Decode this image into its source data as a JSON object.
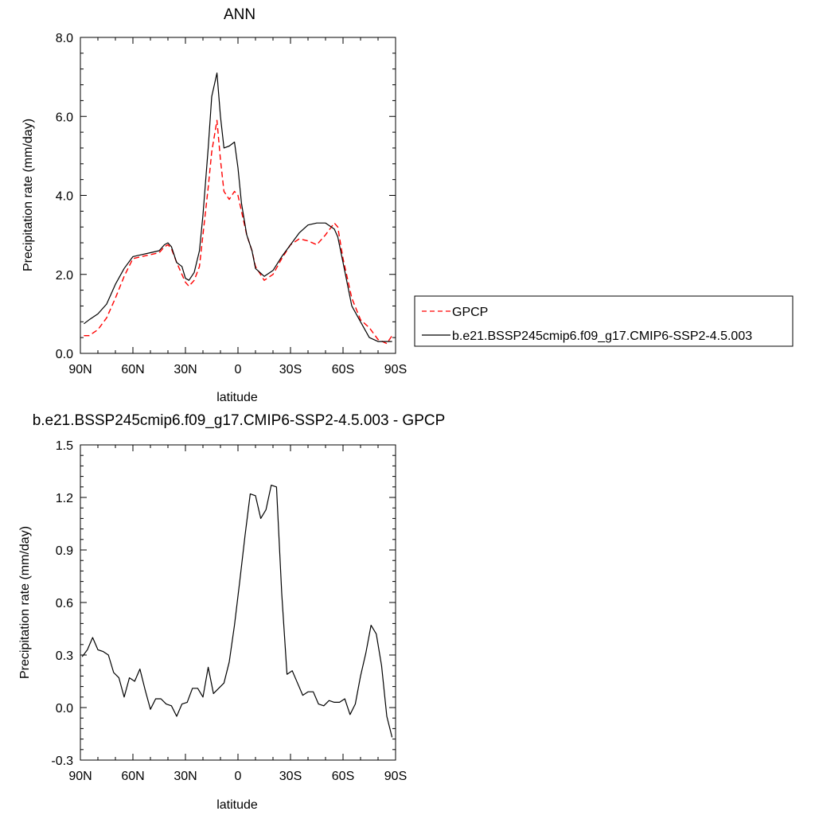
{
  "chart_data": [
    {
      "type": "line",
      "title": "ANN",
      "xlabel": "latitude",
      "ylabel": "Precipitation rate (mm/day)",
      "xlim": [
        90,
        -90
      ],
      "ylim": [
        0,
        8
      ],
      "x_ticks": [
        90,
        60,
        30,
        0,
        -30,
        -60,
        -90
      ],
      "x_tick_labels": [
        "90N",
        "60N",
        "30N",
        "0",
        "30S",
        "60S",
        "90S"
      ],
      "y_ticks": [
        0,
        2,
        4,
        6,
        8
      ],
      "y_tick_labels": [
        "0.0",
        "2.0",
        "4.0",
        "6.0",
        "8.0"
      ],
      "legend": {
        "placement": "right"
      },
      "series": [
        {
          "name": "GPCP",
          "color": "#ff0000",
          "dashed": true,
          "x": [
            88,
            85,
            80,
            75,
            70,
            65,
            60,
            55,
            50,
            45,
            42,
            40,
            38,
            35,
            32,
            30,
            28,
            25,
            22,
            20,
            17,
            15,
            12,
            10,
            8,
            5,
            2,
            0,
            -2,
            -5,
            -8,
            -10,
            -15,
            -20,
            -25,
            -30,
            -35,
            -40,
            -45,
            -50,
            -55,
            -57,
            -60,
            -65,
            -70,
            -75,
            -80,
            -85,
            -88
          ],
          "y": [
            0.45,
            0.45,
            0.6,
            0.9,
            1.4,
            1.95,
            2.4,
            2.45,
            2.5,
            2.55,
            2.7,
            2.75,
            2.65,
            2.3,
            2.0,
            1.8,
            1.7,
            1.85,
            2.2,
            3.0,
            4.2,
            5.1,
            5.9,
            4.9,
            4.1,
            3.9,
            4.1,
            4.0,
            3.6,
            3.0,
            2.6,
            2.2,
            1.85,
            2.0,
            2.4,
            2.75,
            2.9,
            2.85,
            2.75,
            3.0,
            3.3,
            3.2,
            2.4,
            1.4,
            0.85,
            0.65,
            0.35,
            0.25,
            0.45
          ]
        },
        {
          "name": "b.e21.BSSP245cmip6.f09_g17.CMIP6-SSP2-4.5.003",
          "color": "#000000",
          "dashed": false,
          "x": [
            88,
            85,
            80,
            75,
            70,
            65,
            60,
            55,
            50,
            45,
            42,
            40,
            38,
            35,
            32,
            30,
            28,
            25,
            22,
            20,
            17,
            15,
            12,
            10,
            8,
            5,
            2,
            0,
            -2,
            -5,
            -8,
            -10,
            -15,
            -20,
            -25,
            -30,
            -35,
            -40,
            -45,
            -50,
            -55,
            -57,
            -60,
            -65,
            -70,
            -75,
            -80,
            -85,
            -88
          ],
          "y": [
            0.75,
            0.85,
            1.0,
            1.25,
            1.75,
            2.15,
            2.45,
            2.5,
            2.55,
            2.6,
            2.75,
            2.8,
            2.7,
            2.3,
            2.2,
            1.9,
            1.85,
            2.05,
            2.6,
            3.5,
            5.2,
            6.5,
            7.1,
            6.0,
            5.2,
            5.25,
            5.35,
            4.7,
            3.8,
            3.0,
            2.6,
            2.15,
            1.95,
            2.1,
            2.45,
            2.75,
            3.05,
            3.25,
            3.3,
            3.3,
            3.15,
            2.95,
            2.3,
            1.2,
            0.8,
            0.4,
            0.3,
            0.3,
            0.3
          ]
        }
      ]
    },
    {
      "type": "line",
      "title": "b.e21.BSSP245cmip6.f09_g17.CMIP6-SSP2-4.5.003 - GPCP",
      "xlabel": "latitude",
      "ylabel": "Precipitation rate (mm/day)",
      "xlim": [
        90,
        -90
      ],
      "ylim": [
        -0.3,
        1.5
      ],
      "x_ticks": [
        90,
        60,
        30,
        0,
        -30,
        -60,
        -90
      ],
      "x_tick_labels": [
        "90N",
        "60N",
        "30N",
        "0",
        "30S",
        "60S",
        "90S"
      ],
      "y_ticks": [
        -0.3,
        0,
        0.3,
        0.6,
        0.9,
        1.2,
        1.5
      ],
      "y_tick_labels": [
        "-0.3",
        "0.0",
        "0.3",
        "0.6",
        "0.9",
        "1.2",
        "1.5"
      ],
      "series": [
        {
          "color": "#000000",
          "x": [
            89,
            86,
            83,
            80,
            77,
            74,
            71,
            68,
            65,
            62,
            59,
            56,
            53,
            50,
            47,
            44,
            41,
            38,
            35,
            32,
            29,
            26,
            23,
            20,
            17,
            14,
            11,
            8,
            5,
            2,
            -1,
            -4,
            -7,
            -10,
            -13,
            -16,
            -19,
            -22,
            -25,
            -28,
            -31,
            -34,
            -37,
            -40,
            -43,
            -46,
            -49,
            -52,
            -55,
            -58,
            -61,
            -64,
            -67,
            -70,
            -73,
            -76,
            -79,
            -82,
            -85,
            -88
          ],
          "y": [
            0.29,
            0.33,
            0.4,
            0.33,
            0.32,
            0.3,
            0.2,
            0.17,
            0.06,
            0.17,
            0.15,
            0.22,
            0.1,
            -0.01,
            0.05,
            0.05,
            0.02,
            0.01,
            -0.05,
            0.02,
            0.03,
            0.11,
            0.11,
            0.06,
            0.23,
            0.08,
            0.11,
            0.14,
            0.26,
            0.47,
            0.72,
            0.98,
            1.22,
            1.21,
            1.08,
            1.13,
            1.27,
            1.26,
            0.65,
            0.19,
            0.21,
            0.14,
            0.07,
            0.09,
            0.09,
            0.02,
            0.01,
            0.04,
            0.03,
            0.03,
            0.05,
            -0.04,
            0.02,
            0.18,
            0.31,
            0.47,
            0.42,
            0.24,
            -0.05,
            -0.17
          ]
        }
      ]
    }
  ]
}
